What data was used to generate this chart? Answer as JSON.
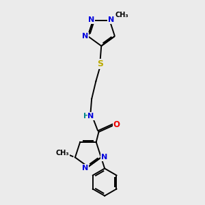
{
  "bg_color": "#ebebeb",
  "atom_colors": {
    "C": "#000000",
    "N": "#0000dd",
    "O": "#ee0000",
    "S": "#bbaa00",
    "H": "#008888"
  },
  "bond_color": "#000000",
  "lw": 1.4
}
